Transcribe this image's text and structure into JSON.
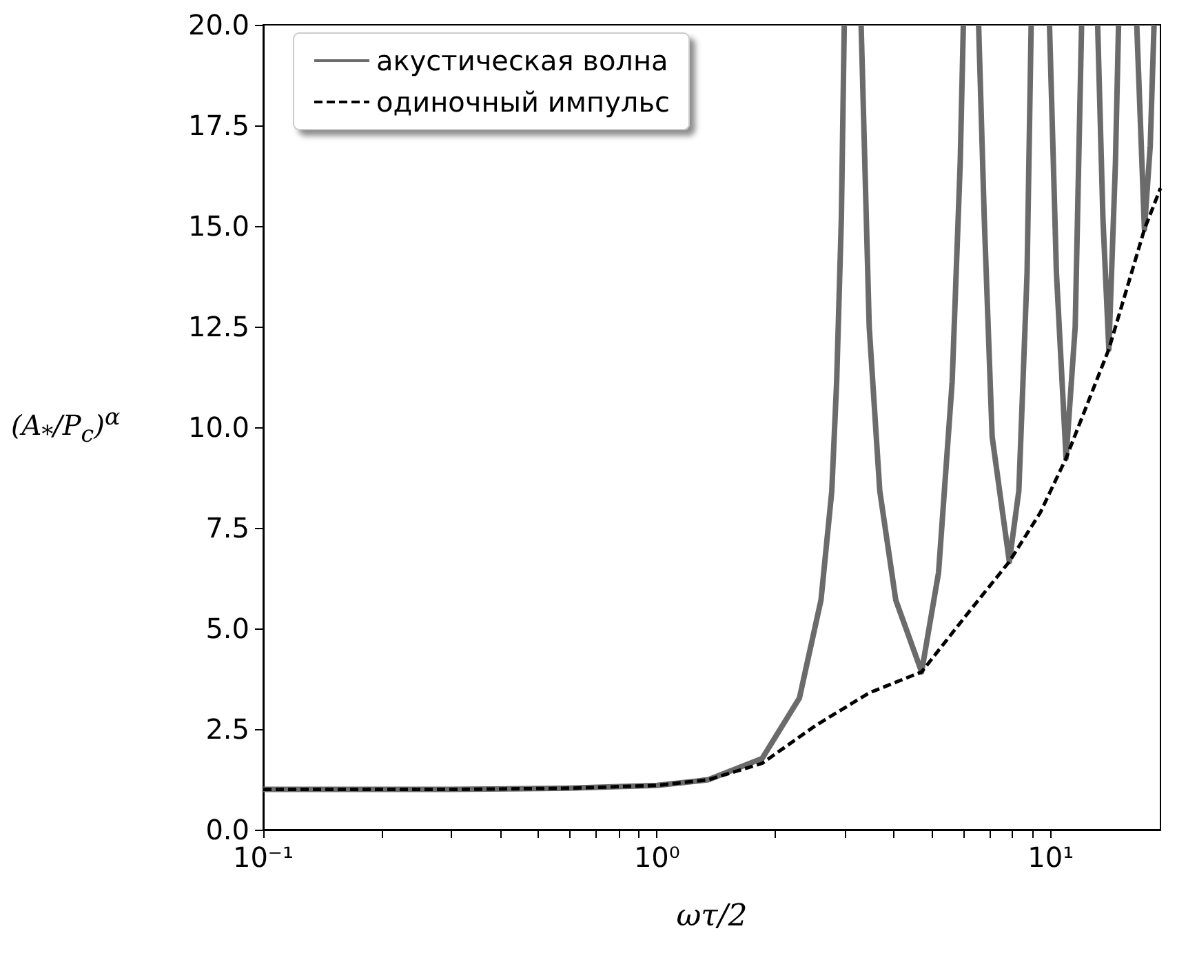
{
  "chart_data": {
    "type": "line",
    "xlabel": "ωτ/2",
    "ylabel": "(A$_{*}$/P$_{c}$)$^{α}$",
    "log": "x",
    "legend": "top left",
    "marker": "none",
    "xlim": [
      0.1,
      19
    ],
    "xticks": [
      {
        "value": 0.1,
        "label": "10⁻¹"
      },
      {
        "value": 0.2,
        "label": null
      },
      {
        "value": 0.3,
        "label": null
      },
      {
        "value": 0.4,
        "label": null
      },
      {
        "value": 0.5,
        "label": null
      },
      {
        "value": 0.6,
        "label": null
      },
      {
        "value": 0.7,
        "label": null
      },
      {
        "value": 0.8,
        "label": null
      },
      {
        "value": 0.9,
        "label": null
      },
      {
        "value": 1,
        "label": "10⁰"
      },
      {
        "value": 2,
        "label": null
      },
      {
        "value": 3,
        "label": null
      },
      {
        "value": 4,
        "label": null
      },
      {
        "value": 5,
        "label": null
      },
      {
        "value": 6,
        "label": null
      },
      {
        "value": 7,
        "label": null
      },
      {
        "value": 8,
        "label": null
      },
      {
        "value": 9,
        "label": null
      },
      {
        "value": 10,
        "label": "10¹"
      }
    ],
    "ylim": [
      0,
      20
    ],
    "yticks": [
      {
        "value": 0,
        "label": "0.0"
      },
      {
        "value": 2.5,
        "label": "2.5"
      },
      {
        "value": 5,
        "label": "5.0"
      },
      {
        "value": 7.5,
        "label": "7.5"
      },
      {
        "value": 10,
        "label": "10.0"
      },
      {
        "value": 12.5,
        "label": "12.5"
      },
      {
        "value": 15,
        "label": "15.0"
      },
      {
        "value": 17.5,
        "label": "17.5"
      },
      {
        "value": 20,
        "label": "20.0"
      }
    ],
    "series": [
      {
        "name": "акустическая волна",
        "color": "#6b6b6b",
        "line_style": "solid",
        "x": [
          0.1,
          0.3,
          0.6,
          1.0,
          1.35,
          1.85,
          2.3,
          2.61,
          2.78,
          2.86,
          2.94,
          2.99,
          3.14,
          3.3,
          3.46,
          3.68,
          4.04,
          4.7,
          5.19,
          5.62,
          5.89,
          6.0,
          6.28,
          6.56,
          6.78,
          7.1,
          7.85,
          8.3,
          8.71,
          8.92,
          9.42,
          9.93,
          10.34,
          10.94,
          11.54,
          11.98,
          12.57,
          13.16,
          13.57,
          14.05,
          14.6,
          14.87,
          15.71,
          16.54,
          17.3,
          17.9,
          18.3
        ],
        "values": [
          1.0,
          1.0,
          1.03,
          1.1,
          1.24,
          1.77,
          3.27,
          5.71,
          8.42,
          11.13,
          15.2,
          20,
          null,
          20,
          12.49,
          8.42,
          5.71,
          3.92,
          6.39,
          11.13,
          16.55,
          20,
          null,
          20,
          15.2,
          9.77,
          6.66,
          8.42,
          13.84,
          20,
          null,
          20,
          13.84,
          9.23,
          12.49,
          20,
          null,
          20,
          15.2,
          11.94,
          16.55,
          20,
          null,
          20,
          14.92,
          17.0,
          20
        ]
      },
      {
        "name": "одиночный импульс",
        "color": "#000000",
        "line_style": "dashed",
        "x": [
          0.1,
          0.3,
          0.6,
          1.0,
          1.35,
          1.85,
          2.53,
          3.46,
          4.7,
          6.07,
          7.85,
          9.41,
          10.94,
          14.05,
          17.3,
          19
        ],
        "values": [
          1.0,
          1.0,
          1.03,
          1.1,
          1.24,
          1.65,
          2.59,
          3.4,
          3.92,
          5.3,
          6.66,
          7.88,
          9.23,
          11.94,
          14.92,
          15.94
        ]
      }
    ]
  }
}
